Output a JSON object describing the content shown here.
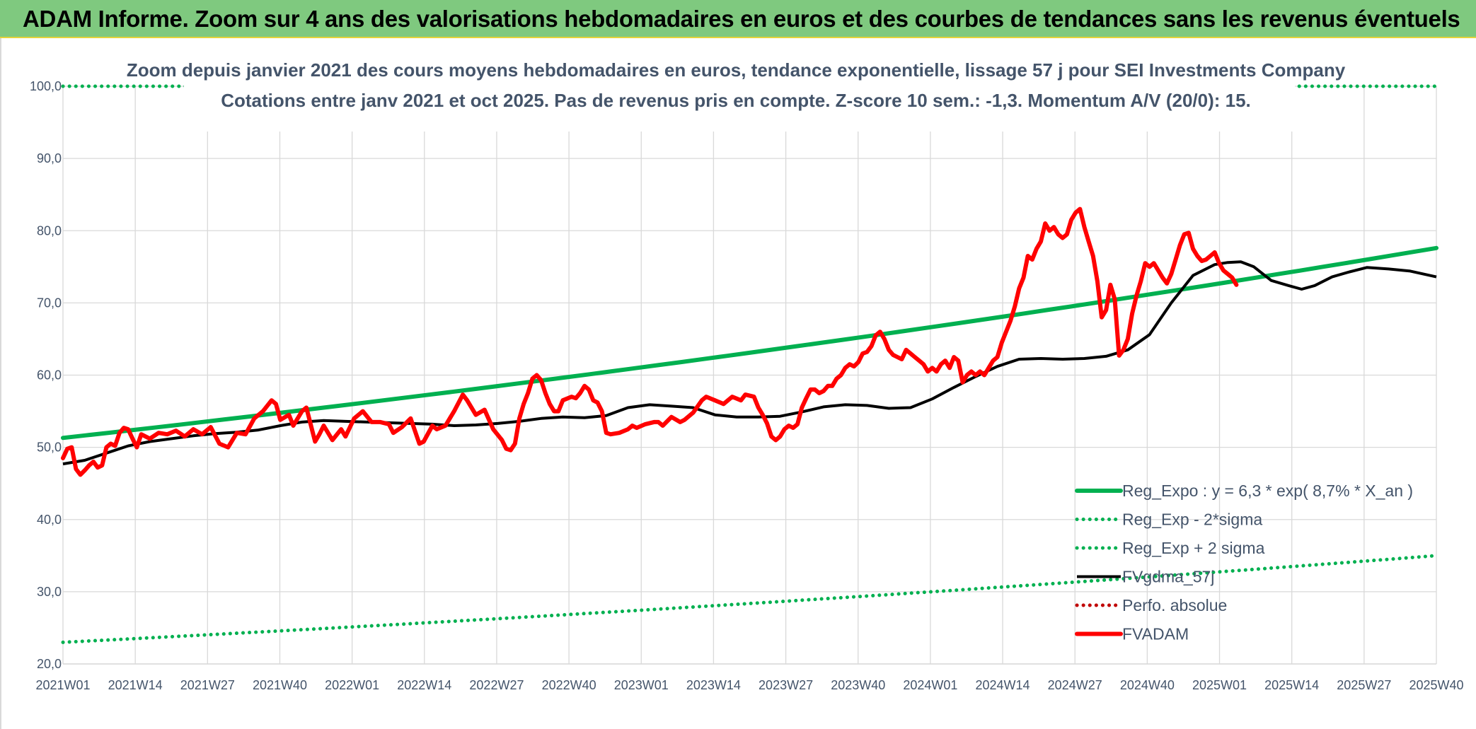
{
  "header": {
    "title": "ADAM Informe. Zoom sur 4 ans des valorisations hebdomadaires en euros et des courbes de tendances sans les revenus éventuels"
  },
  "colors": {
    "header_bg": "#7fc97f",
    "reg_expo": "#00b050",
    "fvgdma": "#000000",
    "fvadam": "#ff0000",
    "perfo": "#c00000",
    "grid": "#d9d9d9",
    "text": "#44546a"
  },
  "chart_data": {
    "type": "line",
    "title": "Zoom depuis janvier 2021 des cours moyens hebdomadaires en euros, tendance exponentielle, lissage 57 j pour SEI Investments Company",
    "subtitle": "Cotations entre janv 2021 et oct 2025. Pas de revenus pris en compte. Z-score 10 sem.: -1,3. Momentum A/V (20/0): 15.",
    "xlabel": "",
    "ylabel": "",
    "ylim": [
      20,
      100
    ],
    "yticks": [
      "20,0",
      "30,0",
      "40,0",
      "50,0",
      "60,0",
      "70,0",
      "80,0",
      "90,0",
      "100,0"
    ],
    "x_tick_labels": [
      "2021W01",
      "2021W14",
      "2021W27",
      "2021W40",
      "2022W01",
      "2022W14",
      "2022W27",
      "2022W40",
      "2023W01",
      "2023W14",
      "2023W27",
      "2023W40",
      "2024W01",
      "2024W14",
      "2024W27",
      "2024W40",
      "2025W01",
      "2025W14",
      "2025W27",
      "2025W40"
    ],
    "n_weeks": 248,
    "grid": true,
    "legend_position": "bottom-right",
    "legend": [
      "Reg_Expo : y = 6,3 * exp( 8,7% *  X_an )",
      "Reg_Exp - 2*sigma",
      "Reg_Exp + 2 sigma",
      "FVgdma_57j",
      "Perfo. absolue",
      "FVADAM"
    ],
    "series": [
      {
        "name": "Reg_Expo",
        "style": "solid-thick",
        "color": "#00b050",
        "start": 51.3,
        "end": 77.6
      },
      {
        "name": "Reg_Exp - 2*sigma",
        "style": "dotted",
        "color": "#00b050",
        "start": 23.0,
        "end": 35.0
      },
      {
        "name": "Reg_Exp + 2 sigma",
        "style": "dotted",
        "color": "#00b050",
        "start": 100.0,
        "end": 100.0
      },
      {
        "name": "FVgdma_57j",
        "style": "solid",
        "color": "#000000",
        "points": [
          [
            0,
            47.7
          ],
          [
            5,
            48.2
          ],
          [
            10,
            49.2
          ],
          [
            15,
            50.2
          ],
          [
            20,
            50.8
          ],
          [
            25,
            51.2
          ],
          [
            30,
            51.6
          ],
          [
            35,
            51.9
          ],
          [
            40,
            52.1
          ],
          [
            45,
            52.4
          ],
          [
            50,
            53.0
          ],
          [
            55,
            53.5
          ],
          [
            60,
            53.7
          ],
          [
            65,
            53.6
          ],
          [
            70,
            53.5
          ],
          [
            75,
            53.4
          ],
          [
            80,
            53.3
          ],
          [
            85,
            53.2
          ],
          [
            90,
            53.0
          ],
          [
            95,
            53.1
          ],
          [
            100,
            53.3
          ],
          [
            105,
            53.6
          ],
          [
            110,
            54.0
          ],
          [
            115,
            54.2
          ],
          [
            120,
            54.1
          ],
          [
            125,
            54.4
          ],
          [
            130,
            55.5
          ],
          [
            135,
            55.9
          ],
          [
            140,
            55.7
          ],
          [
            145,
            55.5
          ],
          [
            150,
            54.5
          ],
          [
            155,
            54.2
          ],
          [
            160,
            54.2
          ],
          [
            165,
            54.3
          ],
          [
            170,
            54.9
          ],
          [
            175,
            55.6
          ],
          [
            180,
            55.9
          ],
          [
            185,
            55.8
          ],
          [
            190,
            55.4
          ],
          [
            195,
            55.5
          ],
          [
            200,
            56.7
          ],
          [
            205,
            58.3
          ],
          [
            210,
            59.8
          ],
          [
            215,
            61.2
          ],
          [
            220,
            62.2
          ],
          [
            225,
            62.3
          ],
          [
            230,
            62.2
          ],
          [
            235,
            62.3
          ],
          [
            240,
            62.6
          ],
          [
            245,
            63.5
          ],
          [
            250,
            65.6
          ],
          [
            255,
            70.0
          ],
          [
            260,
            73.8
          ],
          [
            265,
            75.3
          ],
          [
            268,
            75.6
          ],
          [
            271,
            75.7
          ],
          [
            274,
            75.0
          ],
          [
            278,
            73.1
          ],
          [
            282,
            72.4
          ],
          [
            285,
            71.9
          ],
          [
            288,
            72.4
          ],
          [
            292,
            73.6
          ],
          [
            296,
            74.3
          ],
          [
            300,
            74.9
          ],
          [
            305,
            74.7
          ],
          [
            310,
            74.4
          ],
          [
            316,
            73.6
          ]
        ]
      },
      {
        "name": "Perfo. absolue",
        "style": "dotted",
        "color": "#c00000",
        "points": []
      },
      {
        "name": "FVADAM",
        "style": "solid-thick",
        "color": "#ff0000",
        "points": [
          [
            0,
            48.5
          ],
          [
            1,
            49.8
          ],
          [
            2,
            50.0
          ],
          [
            3,
            47.0
          ],
          [
            4,
            46.2
          ],
          [
            5,
            46.8
          ],
          [
            6,
            47.5
          ],
          [
            7,
            48.0
          ],
          [
            8,
            47.2
          ],
          [
            9,
            47.5
          ],
          [
            10,
            50.0
          ],
          [
            11,
            50.5
          ],
          [
            12,
            50.2
          ],
          [
            13,
            52.0
          ],
          [
            14,
            52.7
          ],
          [
            15,
            52.5
          ],
          [
            16,
            51.2
          ],
          [
            17,
            50.0
          ],
          [
            18,
            51.8
          ],
          [
            19,
            51.5
          ],
          [
            20,
            51.2
          ],
          [
            22,
            52.0
          ],
          [
            24,
            51.8
          ],
          [
            26,
            52.3
          ],
          [
            28,
            51.5
          ],
          [
            30,
            52.5
          ],
          [
            32,
            51.8
          ],
          [
            34,
            52.8
          ],
          [
            36,
            50.5
          ],
          [
            38,
            50.0
          ],
          [
            40,
            52.0
          ],
          [
            42,
            51.8
          ],
          [
            44,
            54.0
          ],
          [
            46,
            55.0
          ],
          [
            48,
            56.5
          ],
          [
            49,
            56.0
          ],
          [
            50,
            53.8
          ],
          [
            52,
            54.5
          ],
          [
            53,
            53.0
          ],
          [
            55,
            55.0
          ],
          [
            56,
            55.5
          ],
          [
            58,
            50.8
          ],
          [
            59,
            51.8
          ],
          [
            60,
            53.0
          ],
          [
            62,
            51.0
          ],
          [
            64,
            52.5
          ],
          [
            65,
            51.5
          ],
          [
            67,
            54.0
          ],
          [
            69,
            55.0
          ],
          [
            71,
            53.5
          ],
          [
            73,
            53.5
          ],
          [
            75,
            53.2
          ],
          [
            76,
            52.0
          ],
          [
            78,
            52.8
          ],
          [
            80,
            54.0
          ],
          [
            82,
            50.5
          ],
          [
            83,
            50.8
          ],
          [
            85,
            53.0
          ],
          [
            86,
            52.5
          ],
          [
            88,
            53.0
          ],
          [
            90,
            55.0
          ],
          [
            92,
            57.3
          ],
          [
            93,
            56.5
          ],
          [
            95,
            54.5
          ],
          [
            97,
            55.2
          ],
          [
            99,
            52.5
          ],
          [
            101,
            51.0
          ],
          [
            102,
            49.8
          ],
          [
            103,
            49.6
          ],
          [
            104,
            50.5
          ],
          [
            105,
            54.0
          ],
          [
            106,
            56.0
          ],
          [
            107,
            57.5
          ],
          [
            108,
            59.5
          ],
          [
            109,
            60.0
          ],
          [
            110,
            59.3
          ],
          [
            111,
            57.5
          ],
          [
            112,
            56.0
          ],
          [
            113,
            55.0
          ],
          [
            114,
            55.0
          ],
          [
            115,
            56.5
          ],
          [
            117,
            57.0
          ],
          [
            118,
            56.8
          ],
          [
            119,
            57.5
          ],
          [
            120,
            58.5
          ],
          [
            121,
            58.0
          ],
          [
            122,
            56.5
          ],
          [
            123,
            56.2
          ],
          [
            124,
            55.0
          ],
          [
            125,
            52.0
          ],
          [
            126,
            51.8
          ],
          [
            128,
            52.0
          ],
          [
            130,
            52.5
          ],
          [
            131,
            53.0
          ],
          [
            132,
            52.7
          ],
          [
            134,
            53.2
          ],
          [
            136,
            53.5
          ],
          [
            137,
            53.5
          ],
          [
            138,
            53.0
          ],
          [
            140,
            54.2
          ],
          [
            142,
            53.5
          ],
          [
            143,
            53.8
          ],
          [
            145,
            54.8
          ],
          [
            147,
            56.5
          ],
          [
            148,
            57.0
          ],
          [
            150,
            56.5
          ],
          [
            152,
            56.0
          ],
          [
            154,
            57.0
          ],
          [
            156,
            56.5
          ],
          [
            157,
            57.3
          ],
          [
            159,
            57.0
          ],
          [
            160,
            55.5
          ],
          [
            161,
            54.5
          ],
          [
            162,
            53.3
          ],
          [
            163,
            51.5
          ],
          [
            164,
            51.0
          ],
          [
            165,
            51.5
          ],
          [
            166,
            52.5
          ],
          [
            167,
            53.0
          ],
          [
            168,
            52.7
          ],
          [
            169,
            53.2
          ],
          [
            170,
            55.5
          ],
          [
            171,
            56.8
          ],
          [
            172,
            58.0
          ],
          [
            173,
            58.0
          ],
          [
            174,
            57.5
          ],
          [
            175,
            57.8
          ],
          [
            176,
            58.5
          ],
          [
            177,
            58.5
          ],
          [
            178,
            59.5
          ],
          [
            179,
            60.0
          ],
          [
            180,
            61.0
          ],
          [
            181,
            61.5
          ],
          [
            182,
            61.2
          ],
          [
            183,
            61.8
          ],
          [
            184,
            63.0
          ],
          [
            185,
            63.2
          ],
          [
            186,
            64.0
          ],
          [
            187,
            65.5
          ],
          [
            188,
            66.0
          ],
          [
            189,
            65.0
          ],
          [
            190,
            63.5
          ],
          [
            191,
            62.8
          ],
          [
            192,
            62.5
          ],
          [
            193,
            62.2
          ],
          [
            194,
            63.5
          ],
          [
            195,
            63.0
          ],
          [
            196,
            62.5
          ],
          [
            197,
            62.0
          ],
          [
            198,
            61.5
          ],
          [
            199,
            60.5
          ],
          [
            200,
            61.0
          ],
          [
            201,
            60.5
          ],
          [
            202,
            61.5
          ],
          [
            203,
            62.0
          ],
          [
            204,
            61.0
          ],
          [
            205,
            62.5
          ],
          [
            206,
            62.0
          ],
          [
            207,
            59.0
          ],
          [
            208,
            60.0
          ],
          [
            209,
            60.5
          ],
          [
            210,
            60.0
          ],
          [
            211,
            60.5
          ],
          [
            212,
            60.0
          ],
          [
            213,
            61.0
          ],
          [
            214,
            62.0
          ],
          [
            215,
            62.5
          ],
          [
            216,
            64.5
          ],
          [
            217,
            66.0
          ],
          [
            218,
            67.5
          ],
          [
            219,
            69.5
          ],
          [
            220,
            72.0
          ],
          [
            221,
            73.5
          ],
          [
            222,
            76.5
          ],
          [
            223,
            76.0
          ],
          [
            224,
            77.5
          ],
          [
            225,
            78.5
          ],
          [
            226,
            81.0
          ],
          [
            227,
            80.0
          ],
          [
            228,
            80.5
          ],
          [
            229,
            79.5
          ],
          [
            230,
            79.0
          ],
          [
            231,
            79.5
          ],
          [
            232,
            81.5
          ],
          [
            233,
            82.5
          ],
          [
            234,
            83.0
          ],
          [
            235,
            80.5
          ],
          [
            236,
            78.5
          ],
          [
            237,
            76.5
          ],
          [
            238,
            73.0
          ],
          [
            239,
            68.0
          ],
          [
            240,
            69.0
          ],
          [
            241,
            72.5
          ],
          [
            242,
            70.5
          ],
          [
            243,
            62.7
          ],
          [
            244,
            63.5
          ],
          [
            245,
            65.0
          ],
          [
            246,
            68.5
          ],
          [
            247,
            71.0
          ],
          [
            248,
            73.0
          ],
          [
            249,
            75.5
          ],
          [
            250,
            75.0
          ],
          [
            251,
            75.5
          ],
          [
            252,
            74.5
          ],
          [
            253,
            73.5
          ],
          [
            254,
            72.7
          ],
          [
            255,
            74.0
          ],
          [
            256,
            76.0
          ],
          [
            257,
            78.0
          ],
          [
            258,
            79.5
          ],
          [
            259,
            79.7
          ],
          [
            260,
            77.5
          ],
          [
            261,
            76.5
          ],
          [
            262,
            75.8
          ],
          [
            263,
            76.0
          ],
          [
            264,
            76.5
          ],
          [
            265,
            77.0
          ],
          [
            266,
            75.5
          ],
          [
            267,
            74.5
          ],
          [
            268,
            74.0
          ],
          [
            269,
            73.5
          ],
          [
            270,
            72.5
          ]
        ]
      }
    ]
  }
}
